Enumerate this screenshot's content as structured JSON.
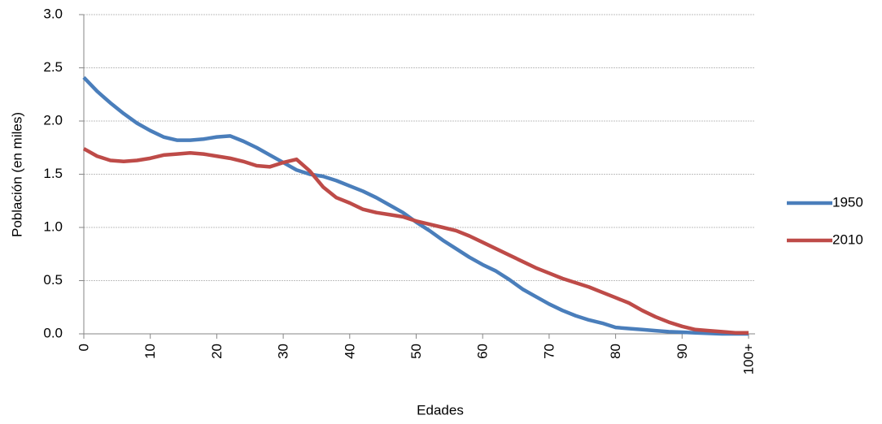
{
  "chart_data": {
    "type": "line",
    "x_label": "Edades",
    "y_label": "Población (en miles)",
    "x": [
      0,
      2,
      4,
      6,
      8,
      10,
      12,
      14,
      16,
      18,
      20,
      22,
      24,
      26,
      28,
      30,
      32,
      34,
      36,
      38,
      40,
      42,
      44,
      46,
      48,
      50,
      52,
      54,
      56,
      58,
      60,
      62,
      64,
      66,
      68,
      70,
      72,
      74,
      76,
      78,
      80,
      82,
      84,
      86,
      88,
      90,
      92,
      94,
      96,
      98,
      100
    ],
    "series": [
      {
        "name": "1950",
        "color": "#4a7ebb",
        "values": [
          2.41,
          2.28,
          2.17,
          2.07,
          1.98,
          1.91,
          1.85,
          1.82,
          1.82,
          1.83,
          1.85,
          1.86,
          1.81,
          1.75,
          1.68,
          1.61,
          1.54,
          1.5,
          1.48,
          1.44,
          1.39,
          1.34,
          1.28,
          1.21,
          1.14,
          1.05,
          0.97,
          0.88,
          0.8,
          0.72,
          0.65,
          0.59,
          0.51,
          0.42,
          0.35,
          0.28,
          0.22,
          0.17,
          0.13,
          0.1,
          0.06,
          0.05,
          0.04,
          0.03,
          0.02,
          0.015,
          0.01,
          0.005,
          0,
          0,
          0
        ]
      },
      {
        "name": "2010",
        "color": "#be4b48",
        "values": [
          1.74,
          1.67,
          1.63,
          1.62,
          1.63,
          1.65,
          1.68,
          1.69,
          1.7,
          1.69,
          1.67,
          1.65,
          1.62,
          1.58,
          1.57,
          1.61,
          1.64,
          1.53,
          1.38,
          1.28,
          1.23,
          1.17,
          1.14,
          1.12,
          1.1,
          1.06,
          1.03,
          1.0,
          0.97,
          0.92,
          0.86,
          0.8,
          0.74,
          0.68,
          0.62,
          0.57,
          0.52,
          0.48,
          0.44,
          0.39,
          0.34,
          0.29,
          0.22,
          0.16,
          0.11,
          0.07,
          0.04,
          0.03,
          0.02,
          0.01,
          0.01
        ]
      }
    ],
    "xlim": [
      0,
      100
    ],
    "xticks": [
      0,
      10,
      20,
      30,
      40,
      50,
      60,
      70,
      80,
      90,
      {
        "value": 100,
        "label": "100+"
      }
    ],
    "ylim": [
      0,
      3
    ],
    "yticks": [
      {
        "value": 0,
        "label": "0.0"
      },
      {
        "value": 0.5,
        "label": "0.5"
      },
      {
        "value": 1,
        "label": "1.0"
      },
      {
        "value": 1.5,
        "label": "1.5"
      },
      {
        "value": 2,
        "label": "2.0"
      },
      {
        "value": 2.5,
        "label": "2.5"
      },
      {
        "value": 3,
        "label": "3.0"
      }
    ],
    "grid": true,
    "legend": "right"
  }
}
